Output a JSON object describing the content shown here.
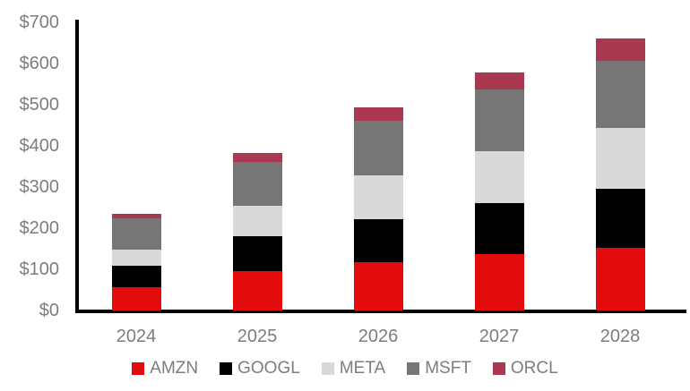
{
  "chart_data": {
    "type": "bar",
    "stacked": true,
    "title": "",
    "xlabel": "",
    "ylabel": "",
    "categories": [
      "2024",
      "2025",
      "2026",
      "2027",
      "2028"
    ],
    "series": [
      {
        "name": "AMZN",
        "color": "#e30b0b",
        "values": [
          57,
          95,
          118,
          136,
          153
        ]
      },
      {
        "name": "GOOGL",
        "color": "#000000",
        "values": [
          52,
          85,
          104,
          124,
          143
        ]
      },
      {
        "name": "META",
        "color": "#d9d9d9",
        "values": [
          39,
          74,
          106,
          128,
          147
        ]
      },
      {
        "name": "MSFT",
        "color": "#767676",
        "values": [
          76,
          107,
          133,
          149,
          164
        ]
      },
      {
        "name": "ORCL",
        "color": "#a83950",
        "values": [
          10,
          21,
          33,
          41,
          54
        ]
      }
    ],
    "totals": [
      234,
      382,
      494,
      578,
      661
    ],
    "y_axis": {
      "min": 0,
      "max": 700,
      "step": 100,
      "tick_labels": [
        "$0",
        "$100",
        "$200",
        "$300",
        "$400",
        "$500",
        "$600",
        "$700"
      ]
    },
    "legend_position": "bottom",
    "grid": false,
    "colors": {
      "axis_line": "#000000",
      "label_text": "#7d7d7d",
      "background": "#ffffff"
    }
  }
}
